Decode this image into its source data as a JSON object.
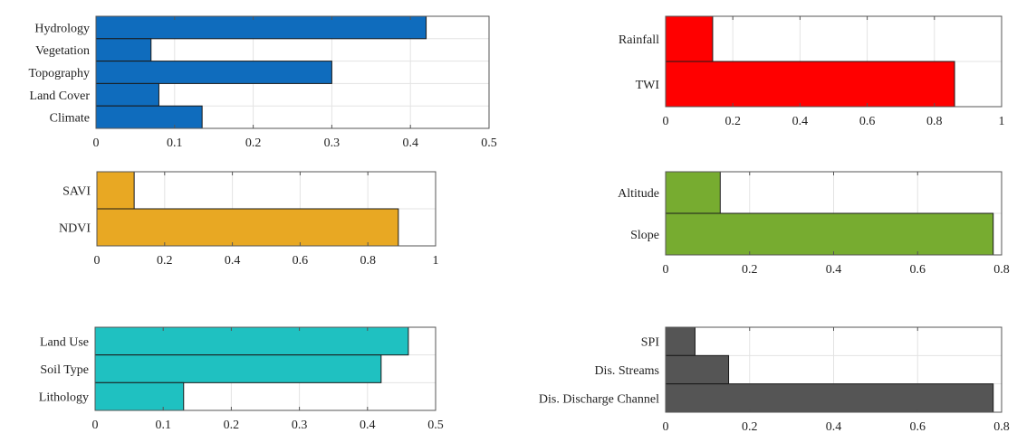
{
  "chart_data": [
    {
      "type": "bar",
      "orientation": "horizontal",
      "color": "#0f6cbd",
      "categories": [
        "Hydrology",
        "Vegetation",
        "Topography",
        "Land Cover",
        "Climate"
      ],
      "values": [
        0.42,
        0.07,
        0.3,
        0.08,
        0.135
      ],
      "xlim": [
        0,
        0.5
      ],
      "xticks": [
        "0",
        "0.1",
        "0.2",
        "0.3",
        "0.4",
        "0.5"
      ],
      "grid": true
    },
    {
      "type": "bar",
      "orientation": "horizontal",
      "color": "#ff0000",
      "categories": [
        "Rainfall",
        "TWI"
      ],
      "values": [
        0.14,
        0.86
      ],
      "xlim": [
        0,
        1
      ],
      "xticks": [
        "0",
        "0.2",
        "0.4",
        "0.6",
        "0.8",
        "1"
      ],
      "grid": true
    },
    {
      "type": "bar",
      "orientation": "horizontal",
      "color": "#e8a823",
      "categories": [
        "SAVI",
        "NDVI"
      ],
      "values": [
        0.11,
        0.89
      ],
      "xlim": [
        0,
        1
      ],
      "xticks": [
        "0",
        "0.2",
        "0.4",
        "0.6",
        "0.8",
        "1"
      ],
      "grid": true
    },
    {
      "type": "bar",
      "orientation": "horizontal",
      "color": "#77ac30",
      "categories": [
        "Altitude",
        "Slope"
      ],
      "values": [
        0.13,
        0.78
      ],
      "xlim": [
        0,
        0.8
      ],
      "xticks": [
        "0",
        "0.2",
        "0.4",
        "0.6",
        "0.8"
      ],
      "grid": true
    },
    {
      "type": "bar",
      "orientation": "horizontal",
      "color": "#1fc1c1",
      "categories": [
        "Land Use",
        "Soil Type",
        "Lithology"
      ],
      "values": [
        0.46,
        0.42,
        0.13
      ],
      "xlim": [
        0,
        0.5
      ],
      "xticks": [
        "0",
        "0.1",
        "0.2",
        "0.3",
        "0.4",
        "0.5"
      ],
      "grid": true
    },
    {
      "type": "bar",
      "orientation": "horizontal",
      "color": "#555555",
      "categories": [
        "SPI",
        "Dis. Streams",
        "Dis. Discharge Channel"
      ],
      "values": [
        0.07,
        0.15,
        0.78
      ],
      "xlim": [
        0,
        0.8
      ],
      "xticks": [
        "0",
        "0.2",
        "0.4",
        "0.6",
        "0.8"
      ],
      "grid": true
    }
  ]
}
